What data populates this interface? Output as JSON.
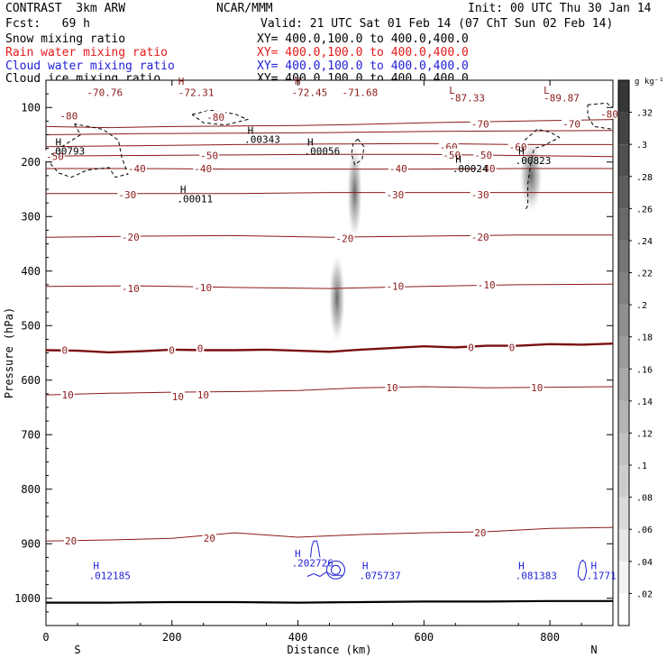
{
  "header": {
    "left_line1": "CONTRAST  3km ARW",
    "left_line2": "Fcst:   69 h",
    "center_org": "NCAR/MMM",
    "init": "Init: 00 UTC Thu 30 Jan 14",
    "valid": "Valid: 21 UTC Sat 01 Feb 14 (07 ChT Sun 02 Feb 14)"
  },
  "fields": [
    {
      "name": "Snow mixing ratio",
      "xy": "XY= 400.0,100.0 to 400.0,400.0",
      "color": "#000000"
    },
    {
      "name": "Rain water mixing ratio",
      "xy": "XY= 400.0,100.0 to 400.0,400.0",
      "color": "#e41a1c"
    },
    {
      "name": "Cloud water mixing ratio",
      "xy": "XY= 400.0,100.0 to 400.0,400.0",
      "color": "#1f1fd6"
    },
    {
      "name": "Cloud ice mixing ratio",
      "xy": "XY= 400.0,100.0 to 400.0,400.0",
      "color": "#000000"
    }
  ],
  "colors": {
    "temperature_contour": "#8b1a1a",
    "zero_contour": "#7a0f0f",
    "cloud_water": "#1f1fd6",
    "cloud_ice": "#000000",
    "snow_shade": "#6e6e6e"
  },
  "chart_data": {
    "type": "heatmap",
    "xlabel": "Distance (km)",
    "ylabel": "Pressure (hPa)",
    "xlim": [
      0,
      900
    ],
    "ylim": [
      1050,
      50
    ],
    "x_ticks": [
      "0",
      "200",
      "400",
      "600",
      "800"
    ],
    "x_tick_values": [
      0,
      200,
      400,
      600,
      800
    ],
    "y_ticks": [
      "100",
      "200",
      "300",
      "400",
      "500",
      "600",
      "700",
      "800",
      "900",
      "1000"
    ],
    "y_tick_values": [
      100,
      200,
      300,
      400,
      500,
      600,
      700,
      800,
      900,
      1000
    ],
    "endpoints": {
      "left": "S",
      "right": "N"
    },
    "colorbar": {
      "unit": "g kg⁻¹",
      "ticks": [
        ".02",
        ".04",
        ".06",
        ".08",
        ".1",
        ".12",
        ".14",
        ".16",
        ".18",
        ".2",
        ".22",
        ".24",
        ".26",
        ".28",
        ".3",
        ".32"
      ],
      "values": [
        0.02,
        0.04,
        0.06,
        0.08,
        0.1,
        0.12,
        0.14,
        0.16,
        0.18,
        0.2,
        0.22,
        0.24,
        0.26,
        0.28,
        0.3,
        0.32
      ]
    },
    "temperature_contours": [
      {
        "value": -80,
        "points": [
          [
            0,
            135
          ],
          [
            100,
            137
          ],
          [
            200,
            135
          ],
          [
            300,
            134
          ],
          [
            400,
            133
          ],
          [
            500,
            131
          ],
          [
            600,
            128
          ],
          [
            700,
            126
          ],
          [
            800,
            124
          ],
          [
            900,
            122
          ]
        ]
      },
      {
        "value": -70,
        "points": [
          [
            0,
            150
          ],
          [
            150,
            148
          ],
          [
            300,
            147
          ],
          [
            450,
            146
          ],
          [
            600,
            144
          ],
          [
            750,
            143
          ],
          [
            900,
            142
          ]
        ]
      },
      {
        "value": -60,
        "points": [
          [
            0,
            172
          ],
          [
            150,
            170
          ],
          [
            300,
            168
          ],
          [
            450,
            167
          ],
          [
            600,
            166
          ],
          [
            750,
            168
          ],
          [
            900,
            168
          ]
        ]
      },
      {
        "value": -50,
        "points": [
          [
            0,
            189
          ],
          [
            150,
            188
          ],
          [
            300,
            187
          ],
          [
            450,
            186
          ],
          [
            600,
            186
          ],
          [
            750,
            188
          ],
          [
            900,
            190
          ]
        ]
      },
      {
        "value": -40,
        "points": [
          [
            0,
            212
          ],
          [
            150,
            212
          ],
          [
            300,
            213
          ],
          [
            450,
            213
          ],
          [
            600,
            213
          ],
          [
            750,
            212
          ],
          [
            900,
            212
          ]
        ]
      },
      {
        "value": -30,
        "points": [
          [
            0,
            258
          ],
          [
            150,
            258
          ],
          [
            300,
            258
          ],
          [
            450,
            256
          ],
          [
            600,
            256
          ],
          [
            750,
            256
          ],
          [
            900,
            256
          ]
        ]
      },
      {
        "value": -20,
        "points": [
          [
            0,
            338
          ],
          [
            150,
            336
          ],
          [
            300,
            335
          ],
          [
            450,
            338
          ],
          [
            600,
            336
          ],
          [
            750,
            334
          ],
          [
            900,
            334
          ]
        ]
      },
      {
        "value": -10,
        "points": [
          [
            0,
            428
          ],
          [
            150,
            427
          ],
          [
            300,
            430
          ],
          [
            450,
            432
          ],
          [
            600,
            428
          ],
          [
            750,
            425
          ],
          [
            900,
            424
          ]
        ]
      },
      {
        "value": 0,
        "points": [
          [
            0,
            545
          ],
          [
            50,
            546
          ],
          [
            100,
            549
          ],
          [
            150,
            547
          ],
          [
            200,
            544
          ],
          [
            250,
            545
          ],
          [
            300,
            545
          ],
          [
            350,
            544
          ],
          [
            400,
            546
          ],
          [
            450,
            548
          ],
          [
            500,
            544
          ],
          [
            550,
            541
          ],
          [
            600,
            538
          ],
          [
            650,
            540
          ],
          [
            700,
            537
          ],
          [
            750,
            537
          ],
          [
            800,
            534
          ],
          [
            850,
            535
          ],
          [
            900,
            533
          ]
        ]
      },
      {
        "value": 10,
        "points": [
          [
            0,
            627
          ],
          [
            100,
            624
          ],
          [
            200,
            622
          ],
          [
            300,
            621
          ],
          [
            400,
            619
          ],
          [
            500,
            614
          ],
          [
            600,
            612
          ],
          [
            700,
            614
          ],
          [
            800,
            613
          ],
          [
            900,
            612
          ]
        ]
      },
      {
        "value": 20,
        "points": [
          [
            0,
            895
          ],
          [
            100,
            893
          ],
          [
            200,
            890
          ],
          [
            300,
            880
          ],
          [
            400,
            888
          ],
          [
            500,
            883
          ],
          [
            600,
            880
          ],
          [
            700,
            878
          ],
          [
            800,
            872
          ],
          [
            900,
            870
          ]
        ]
      }
    ],
    "contour_labels": [
      {
        "text": "-80",
        "x": 22,
        "y": 115
      },
      {
        "text": "-80",
        "x": 255,
        "y": 118
      },
      {
        "text": "-80",
        "x": 880,
        "y": 112
      },
      {
        "text": "-70",
        "x": 675,
        "y": 130
      },
      {
        "text": "-70",
        "x": 820,
        "y": 130
      },
      {
        "text": "-60",
        "x": 625,
        "y": 172
      },
      {
        "text": "-60",
        "x": 735,
        "y": 172
      },
      {
        "text": "-50",
        "x": 0,
        "y": 190
      },
      {
        "text": "-50",
        "x": 245,
        "y": 188
      },
      {
        "text": "-50",
        "x": 630,
        "y": 187
      },
      {
        "text": "-50",
        "x": 680,
        "y": 187
      },
      {
        "text": "-40",
        "x": 130,
        "y": 212
      },
      {
        "text": "-40",
        "x": 235,
        "y": 212
      },
      {
        "text": "-40",
        "x": 545,
        "y": 212
      },
      {
        "text": "-40",
        "x": 685,
        "y": 212
      },
      {
        "text": "-30",
        "x": 115,
        "y": 260
      },
      {
        "text": "-30",
        "x": 540,
        "y": 260
      },
      {
        "text": "-30",
        "x": 675,
        "y": 260
      },
      {
        "text": "-20",
        "x": 120,
        "y": 338
      },
      {
        "text": "-20",
        "x": 460,
        "y": 340
      },
      {
        "text": "-20",
        "x": 675,
        "y": 338
      },
      {
        "text": "-10",
        "x": 120,
        "y": 432
      },
      {
        "text": "-10",
        "x": 235,
        "y": 430
      },
      {
        "text": "-10",
        "x": 540,
        "y": 428
      },
      {
        "text": "-10",
        "x": 685,
        "y": 425
      },
      {
        "text": "0",
        "x": 25,
        "y": 545
      },
      {
        "text": "0",
        "x": 195,
        "y": 545
      },
      {
        "text": "0",
        "x": 240,
        "y": 542
      },
      {
        "text": "0",
        "x": 670,
        "y": 540
      },
      {
        "text": "0",
        "x": 735,
        "y": 540
      },
      {
        "text": "10",
        "x": 25,
        "y": 627
      },
      {
        "text": "10",
        "x": 200,
        "y": 630
      },
      {
        "text": "10",
        "x": 240,
        "y": 627
      },
      {
        "text": "10",
        "x": 540,
        "y": 614
      },
      {
        "text": "10",
        "x": 770,
        "y": 614
      },
      {
        "text": "20",
        "x": 30,
        "y": 895
      },
      {
        "text": "20",
        "x": 250,
        "y": 890
      },
      {
        "text": "20",
        "x": 680,
        "y": 880
      }
    ],
    "extrema_labels": [
      {
        "text": "-70.76",
        "x": 65,
        "y": 72,
        "color": "#8b1a1a"
      },
      {
        "text": "-72.31",
        "x": 210,
        "y": 72,
        "color": "#8b1a1a"
      },
      {
        "text": "-72.45",
        "x": 390,
        "y": 72,
        "color": "#8b1a1a"
      },
      {
        "text": "-71.68",
        "x": 470,
        "y": 72,
        "color": "#8b1a1a"
      },
      {
        "text": "-87.33",
        "x": 640,
        "y": 82,
        "color": "#8b1a1a"
      },
      {
        "text": "-89.87",
        "x": 790,
        "y": 82,
        "color": "#8b1a1a"
      },
      {
        "text": "H",
        "x": 210,
        "y": 52,
        "color": "#8b1a1a"
      },
      {
        "text": "H",
        "x": 395,
        "y": 52,
        "color": "#8b1a1a"
      },
      {
        "text": "L",
        "x": 640,
        "y": 68,
        "color": "#8b1a1a"
      },
      {
        "text": "L",
        "x": 790,
        "y": 68,
        "color": "#8b1a1a"
      },
      {
        "text": "H",
        "x": 15,
        "y": 163,
        "color": "#000000"
      },
      {
        "text": ".00793",
        "x": 5,
        "y": 180,
        "color": "#000000"
      },
      {
        "text": "H",
        "x": 320,
        "y": 142,
        "color": "#000000"
      },
      {
        "text": ".00343",
        "x": 315,
        "y": 158,
        "color": "#000000"
      },
      {
        "text": "H",
        "x": 415,
        "y": 163,
        "color": "#000000"
      },
      {
        "text": ".00056",
        "x": 410,
        "y": 180,
        "color": "#000000"
      },
      {
        "text": "H",
        "x": 213,
        "y": 250,
        "color": "#000000"
      },
      {
        "text": ".00011",
        "x": 208,
        "y": 267,
        "color": "#000000"
      },
      {
        "text": "H",
        "x": 650,
        "y": 195,
        "color": "#000000"
      },
      {
        "text": ".00024",
        "x": 645,
        "y": 212,
        "color": "#000000"
      },
      {
        "text": "H",
        "x": 750,
        "y": 180,
        "color": "#000000"
      },
      {
        "text": ".00823",
        "x": 745,
        "y": 197,
        "color": "#000000"
      },
      {
        "text": "H",
        "x": 75,
        "y": 940,
        "color": "#1f1fd6"
      },
      {
        "text": ".012185",
        "x": 68,
        "y": 958,
        "color": "#1f1fd6"
      },
      {
        "text": "H",
        "x": 395,
        "y": 918,
        "color": "#1f1fd6"
      },
      {
        "text": ".202726",
        "x": 390,
        "y": 935,
        "color": "#1f1fd6"
      },
      {
        "text": "H",
        "x": 502,
        "y": 940,
        "color": "#1f1fd6"
      },
      {
        "text": ".075737",
        "x": 497,
        "y": 958,
        "color": "#1f1fd6"
      },
      {
        "text": "H",
        "x": 750,
        "y": 940,
        "color": "#1f1fd6"
      },
      {
        "text": ".081383",
        "x": 745,
        "y": 958,
        "color": "#1f1fd6"
      },
      {
        "text": "H",
        "x": 865,
        "y": 940,
        "color": "#1f1fd6"
      },
      {
        "text": ".1771",
        "x": 858,
        "y": 958,
        "color": "#1f1fd6"
      }
    ],
    "snow_shading": [
      {
        "x": 490,
        "p_top": 170,
        "p_bottom": 340,
        "peak": 0.14
      },
      {
        "x": 462,
        "p_top": 370,
        "p_bottom": 530,
        "peak": 0.16
      },
      {
        "x": 770,
        "p_top": 160,
        "p_bottom": 290,
        "peak": 0.28
      }
    ],
    "ice_contours_dashed": [
      {
        "points": [
          [
            45,
            130
          ],
          [
            55,
            150
          ],
          [
            25,
            172
          ],
          [
            5,
            200
          ],
          [
            20,
            220
          ],
          [
            40,
            228
          ],
          [
            65,
            215
          ],
          [
            100,
            210
          ],
          [
            110,
            228
          ],
          [
            130,
            222
          ],
          [
            120,
            190
          ],
          [
            115,
            160
          ],
          [
            90,
            140
          ],
          [
            45,
            130
          ]
        ]
      },
      {
        "points": [
          [
            232,
            113
          ],
          [
            260,
            105
          ],
          [
            300,
            112
          ],
          [
            320,
            122
          ],
          [
            285,
            132
          ],
          [
            250,
            128
          ],
          [
            232,
            113
          ]
        ]
      },
      {
        "points": [
          [
            495,
            158
          ],
          [
            505,
            172
          ],
          [
            502,
            195
          ],
          [
            490,
            205
          ],
          [
            485,
            185
          ],
          [
            488,
            165
          ],
          [
            495,
            158
          ]
        ]
      },
      {
        "points": [
          [
            760,
            160
          ],
          [
            780,
            140
          ],
          [
            800,
            145
          ],
          [
            815,
            155
          ],
          [
            790,
            170
          ],
          [
            775,
            175
          ],
          [
            770,
            200
          ],
          [
            765,
            240
          ],
          [
            765,
            280
          ],
          [
            760,
            290
          ]
        ]
      },
      {
        "points": [
          [
            860,
            95
          ],
          [
            890,
            92
          ],
          [
            900,
            100
          ],
          [
            900,
            140
          ],
          [
            870,
            135
          ],
          [
            860,
            115
          ],
          [
            860,
            95
          ]
        ]
      }
    ],
    "cloud_water_contours": [
      {
        "points": [
          [
            420,
            925
          ],
          [
            422,
            905
          ],
          [
            425,
            895
          ],
          [
            430,
            895
          ],
          [
            432,
            905
          ],
          [
            435,
            925
          ]
        ]
      },
      {
        "points": [
          [
            415,
            960
          ],
          [
            425,
            955
          ],
          [
            435,
            960
          ],
          [
            445,
            952
          ],
          [
            455,
            958
          ],
          [
            470,
            958
          ]
        ]
      },
      {
        "points": [
          [
            845,
            950
          ],
          [
            848,
            935
          ],
          [
            852,
            930
          ],
          [
            856,
            935
          ],
          [
            858,
            950
          ],
          [
            855,
            965
          ],
          [
            850,
            967
          ],
          [
            845,
            960
          ],
          [
            845,
            950
          ]
        ]
      }
    ],
    "cloud_water_rings": [
      {
        "x": 460,
        "p": 948,
        "r1": 10,
        "r2": 5
      }
    ],
    "surface": [
      [
        0,
        1008
      ],
      [
        100,
        1008
      ],
      [
        200,
        1007
      ],
      [
        300,
        1007
      ],
      [
        400,
        1008
      ],
      [
        500,
        1007
      ],
      [
        600,
        1006
      ],
      [
        700,
        1006
      ],
      [
        800,
        1005
      ],
      [
        900,
        1005
      ]
    ]
  }
}
